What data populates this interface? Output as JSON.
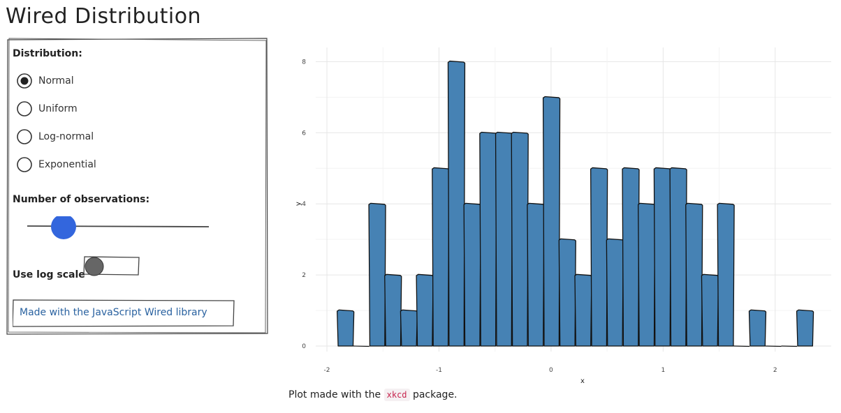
{
  "app": {
    "title": "Wired Distribution"
  },
  "controls": {
    "distribution_label": "Distribution:",
    "distributions": [
      {
        "label": "Normal",
        "selected": true
      },
      {
        "label": "Uniform",
        "selected": false
      },
      {
        "label": "Log-normal",
        "selected": false
      },
      {
        "label": "Exponential",
        "selected": false
      }
    ],
    "observations_label": "Number of observations:",
    "observations_slider_fraction": 0.2,
    "log_scale_label": "Use log scale",
    "log_scale_on": false,
    "credit_link": "Made with the JavaScript Wired library"
  },
  "colors": {
    "bar_fill": "#4682b4",
    "slider_knob": "#3366dd",
    "toggle_knob": "#666666",
    "link": "#2a62a0"
  },
  "caption": {
    "prefix": "Plot made with the",
    "code": "xkcd",
    "suffix": "package."
  },
  "chart_data": {
    "type": "bar",
    "title": "",
    "xlabel": "x",
    "ylabel": "y",
    "xlim": [
      -2.1,
      2.5
    ],
    "ylim": [
      0,
      8.4
    ],
    "xticks": [
      -2,
      -1,
      0,
      1,
      2
    ],
    "yticks": [
      0,
      2,
      4,
      6,
      8
    ],
    "bin_width": 0.1414,
    "bins": [
      {
        "x": -1.8343,
        "y": 1
      },
      {
        "x": -1.6929,
        "y": 0
      },
      {
        "x": -1.5515,
        "y": 4
      },
      {
        "x": -1.4101,
        "y": 2
      },
      {
        "x": -1.2687,
        "y": 1
      },
      {
        "x": -1.1273,
        "y": 2
      },
      {
        "x": -0.9859,
        "y": 5
      },
      {
        "x": -0.8445,
        "y": 8
      },
      {
        "x": -0.7031,
        "y": 4
      },
      {
        "x": -0.5617,
        "y": 6
      },
      {
        "x": -0.4203,
        "y": 6
      },
      {
        "x": -0.2789,
        "y": 6
      },
      {
        "x": -0.1375,
        "y": 4
      },
      {
        "x": 0.0039,
        "y": 7
      },
      {
        "x": 0.1453,
        "y": 3
      },
      {
        "x": 0.2867,
        "y": 2
      },
      {
        "x": 0.4281,
        "y": 5
      },
      {
        "x": 0.5695,
        "y": 3
      },
      {
        "x": 0.7109,
        "y": 5
      },
      {
        "x": 0.8523,
        "y": 4
      },
      {
        "x": 0.9937,
        "y": 5
      },
      {
        "x": 1.1351,
        "y": 5
      },
      {
        "x": 1.2765,
        "y": 4
      },
      {
        "x": 1.4179,
        "y": 2
      },
      {
        "x": 1.5593,
        "y": 4
      },
      {
        "x": 1.7007,
        "y": 0
      },
      {
        "x": 1.8421,
        "y": 1
      },
      {
        "x": 1.9835,
        "y": 0
      },
      {
        "x": 2.1249,
        "y": 0
      },
      {
        "x": 2.2663,
        "y": 1
      }
    ]
  }
}
